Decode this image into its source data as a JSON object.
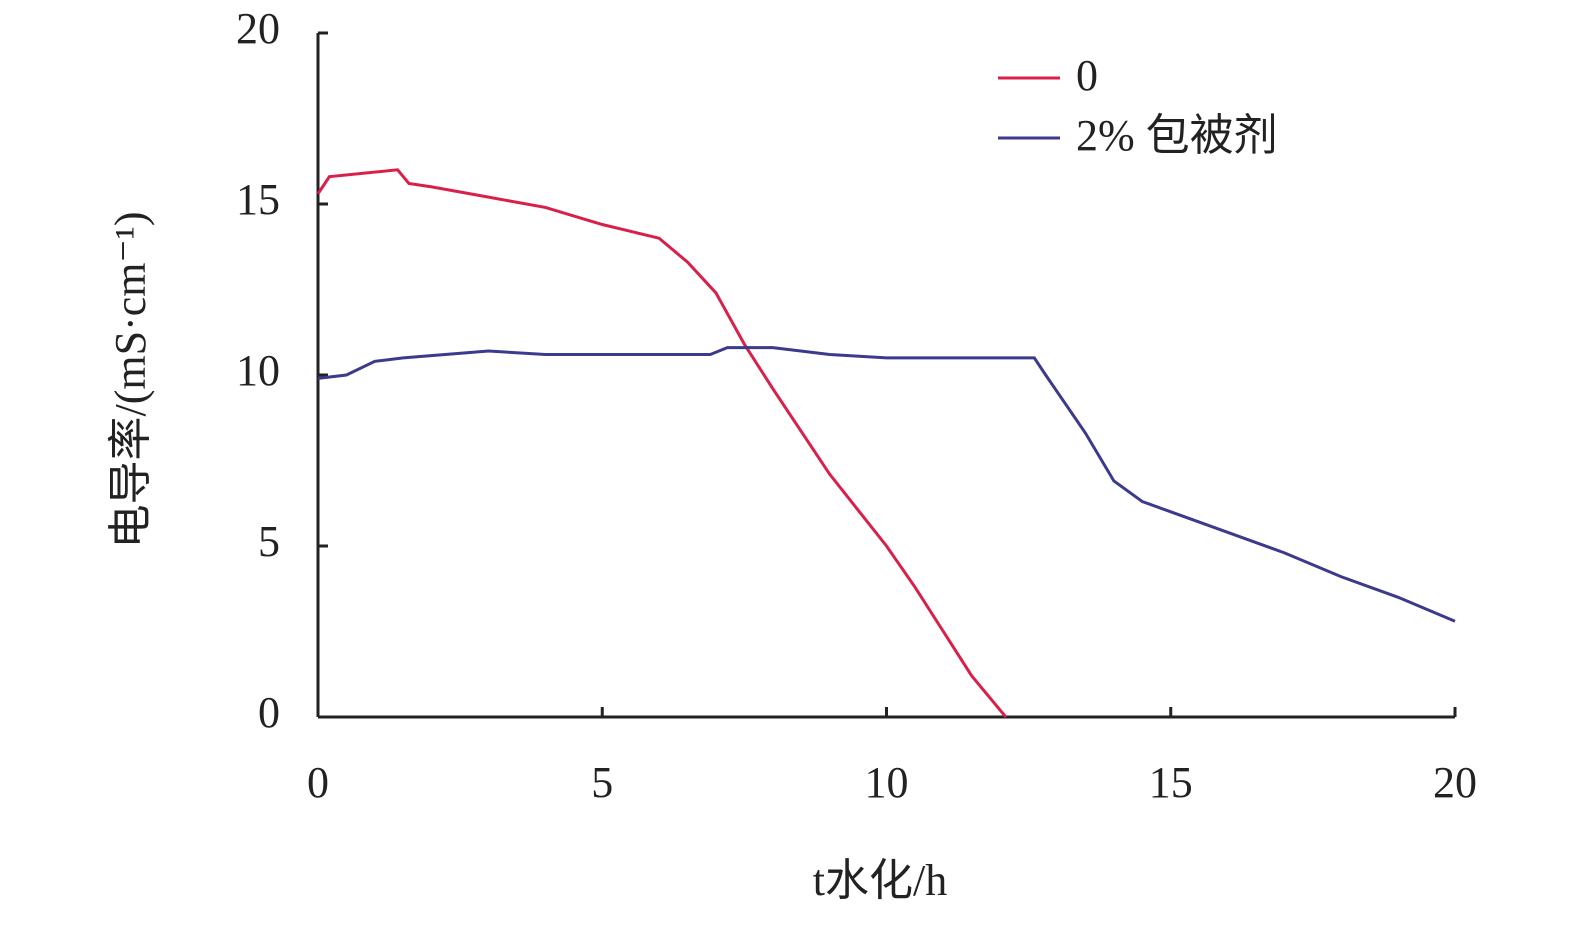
{
  "chart_data": {
    "type": "line",
    "x_label": "t水化/h",
    "y_label": "电导率/(mS·cm⁻¹)",
    "xlim": [
      0,
      20
    ],
    "xticks": [
      0,
      5,
      10,
      15,
      20
    ],
    "ylim": [
      0,
      20
    ],
    "yticks": [
      0,
      5,
      10,
      15,
      20
    ],
    "grid": false,
    "legend": "top-right",
    "series": [
      {
        "name": "0",
        "color": "#d8204a",
        "x": [
          0,
          0.2,
          1.4,
          1.6,
          2,
          3,
          4,
          5,
          6,
          6.5,
          7,
          7.5,
          8,
          9,
          10,
          10.5,
          11,
          11.5,
          12,
          12.1
        ],
        "values": [
          15.3,
          15.8,
          16.0,
          15.6,
          15.5,
          15.2,
          14.9,
          14.4,
          14.0,
          13.3,
          12.4,
          10.9,
          9.6,
          7.1,
          5.0,
          3.8,
          2.5,
          1.2,
          0.2,
          0
        ]
      },
      {
        "name": "2% 包被剂",
        "color": "#3c3a8c",
        "x": [
          0,
          0.5,
          1,
          1.5,
          3,
          4,
          6.9,
          7.2,
          8,
          9,
          10,
          11,
          12,
          12.6,
          12.8,
          13.5,
          14,
          14.5,
          15,
          16,
          17,
          18,
          19,
          20
        ],
        "values": [
          9.9,
          10.0,
          10.4,
          10.5,
          10.7,
          10.6,
          10.6,
          10.8,
          10.8,
          10.6,
          10.5,
          10.5,
          10.5,
          10.5,
          10.0,
          8.3,
          6.9,
          6.3,
          6.0,
          5.4,
          4.8,
          4.1,
          3.5,
          2.8
        ]
      }
    ]
  }
}
